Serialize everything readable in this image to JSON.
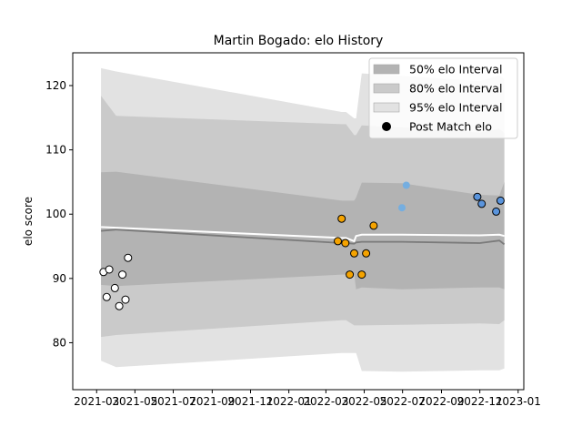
{
  "chart_data": {
    "type": "scatter",
    "title": "Martin Bogado: elo History",
    "xlabel": "",
    "ylabel": "elo score",
    "xlim": [
      "2021-01-22",
      "2023-01-10"
    ],
    "ylim": [
      72.7,
      125.1
    ],
    "x_ticks": [
      "2021-03",
      "2021-05",
      "2021-07",
      "2021-09",
      "2021-11",
      "2022-01",
      "2022-03",
      "2022-05",
      "2022-07",
      "2022-09",
      "2022-11",
      "2023-01"
    ],
    "y_ticks": [
      80,
      90,
      100,
      110,
      120
    ],
    "grid": false,
    "legend_position": "top-right",
    "legend": [
      {
        "label": "50% elo Interval",
        "kind": "band",
        "color": "#b3b3b3"
      },
      {
        "label": "80% elo Interval",
        "kind": "band",
        "color": "#cacaca"
      },
      {
        "label": "95% elo Interval",
        "kind": "band",
        "color": "#e2e2e2"
      },
      {
        "label": "Post Match elo",
        "kind": "marker",
        "color": "#000000"
      }
    ],
    "intervals": {
      "dates": [
        "2021-03-08",
        "2021-04-01",
        "2022-03-26",
        "2022-04-02",
        "2022-04-15",
        "2022-04-18",
        "2022-04-27",
        "2022-06-30",
        "2022-11-01",
        "2022-12-02",
        "2022-12-10"
      ],
      "p95_upper": [
        122.7,
        122.2,
        115.9,
        115.9,
        114.9,
        114.9,
        121.9,
        121.5,
        120.7,
        121.6,
        121.0
      ],
      "p95_lower": [
        77.2,
        76.2,
        78.4,
        78.4,
        78.4,
        78.4,
        75.6,
        75.5,
        75.7,
        75.7,
        76.0
      ],
      "p80_upper": [
        118.4,
        115.3,
        114.0,
        114.0,
        112.3,
        112.3,
        113.8,
        113.5,
        112.7,
        113.3,
        112.6
      ],
      "p80_lower": [
        80.9,
        81.2,
        83.5,
        83.5,
        82.7,
        82.7,
        82.7,
        82.8,
        83.0,
        82.9,
        83.5
      ],
      "p50_upper": [
        106.5,
        106.6,
        102.1,
        102.1,
        102.1,
        102.6,
        104.9,
        104.8,
        103.0,
        102.9,
        105.0
      ],
      "p50_lower": [
        89.0,
        88.8,
        90.6,
        90.6,
        90.6,
        88.3,
        88.6,
        88.3,
        88.6,
        88.6,
        88.3
      ],
      "mean": [
        98.0,
        97.9,
        96.3,
        96.3,
        95.8,
        96.6,
        96.8,
        96.8,
        96.7,
        96.8,
        96.6
      ],
      "median": [
        97.4,
        97.6,
        95.5,
        95.5,
        95.4,
        95.6,
        95.7,
        95.7,
        95.5,
        95.9,
        95.3
      ]
    },
    "series": [
      {
        "color": "#ffffff",
        "edge": "#000000",
        "points": [
          {
            "x": "2021-03-12",
            "y": 91.0
          },
          {
            "x": "2021-03-17",
            "y": 87.1
          },
          {
            "x": "2021-03-21",
            "y": 91.4
          },
          {
            "x": "2021-03-30",
            "y": 88.5
          },
          {
            "x": "2021-04-06",
            "y": 85.7
          },
          {
            "x": "2021-04-11",
            "y": 90.6
          },
          {
            "x": "2021-04-16",
            "y": 86.7
          },
          {
            "x": "2021-04-20",
            "y": 93.2
          }
        ]
      },
      {
        "color": "#f5a300",
        "edge": "#000000",
        "points": [
          {
            "x": "2022-03-20",
            "y": 95.8
          },
          {
            "x": "2022-03-26",
            "y": 99.3
          },
          {
            "x": "2022-04-01",
            "y": 95.5
          },
          {
            "x": "2022-04-08",
            "y": 90.6
          },
          {
            "x": "2022-04-15",
            "y": 93.9
          },
          {
            "x": "2022-04-27",
            "y": 90.6
          },
          {
            "x": "2022-05-04",
            "y": 93.9
          },
          {
            "x": "2022-05-16",
            "y": 98.2
          }
        ]
      },
      {
        "color": "#75aee0",
        "edge": "none",
        "points": [
          {
            "x": "2022-06-30",
            "y": 101.0
          },
          {
            "x": "2022-07-07",
            "y": 104.5
          }
        ]
      },
      {
        "color": "#5a94dc",
        "edge": "#000000",
        "points": [
          {
            "x": "2022-10-28",
            "y": 102.7
          },
          {
            "x": "2022-11-04",
            "y": 101.6
          },
          {
            "x": "2022-11-27",
            "y": 100.4
          },
          {
            "x": "2022-12-04",
            "y": 102.1
          }
        ]
      }
    ]
  }
}
